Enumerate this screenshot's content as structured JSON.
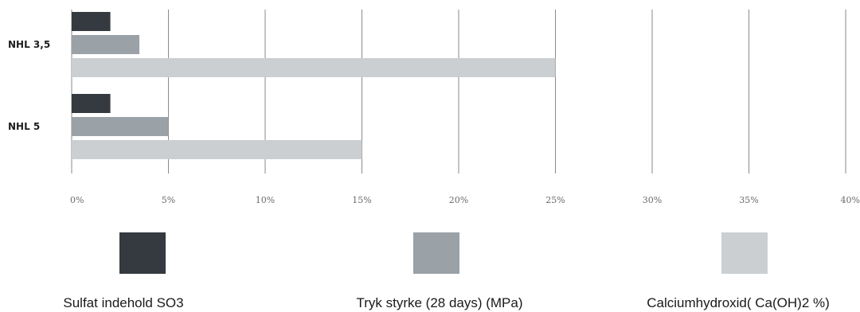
{
  "chart_data": {
    "type": "bar",
    "orientation": "horizontal",
    "categories": [
      "NHL 3,5",
      "NHL 5"
    ],
    "series": [
      {
        "name": "Sulfat indehold SO3",
        "values": [
          2,
          2
        ],
        "color": "#343a3f"
      },
      {
        "name": "Tryk styrke (28 days) (MPa)",
        "values": [
          3.5,
          5
        ],
        "color": "#9aa1a7"
      },
      {
        "name": "Calciumhydroxid(  Ca(OH)2 %)",
        "values": [
          25,
          15
        ],
        "color": "#cbcfd2"
      }
    ],
    "xlim": [
      0,
      40
    ],
    "x_ticks": [
      "0%",
      "5%",
      "10%",
      "15%",
      "20%",
      "25%",
      "30%",
      "35%",
      "40%"
    ],
    "grid": "vertical",
    "legend_position": "bottom"
  }
}
